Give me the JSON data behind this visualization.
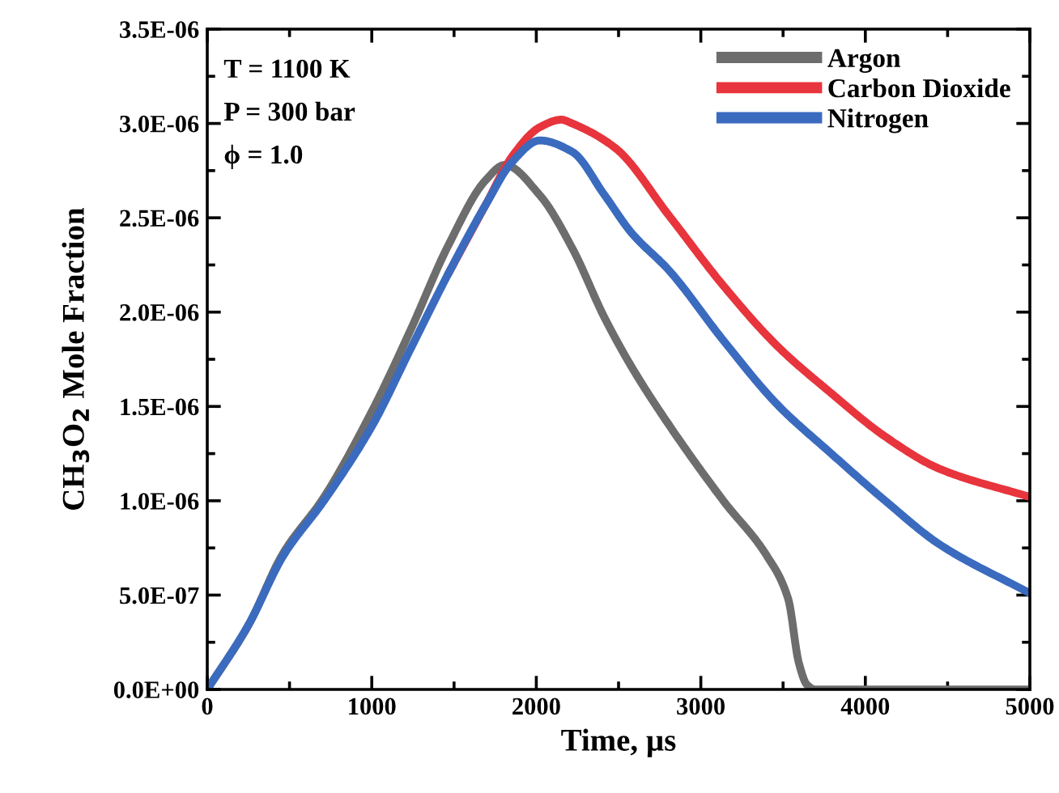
{
  "chart_data": {
    "type": "line",
    "xlabel": "Time, µs",
    "ylabel": "CH$_{3}$O$_{2}$ Mole Fraction",
    "annotations": [
      "T = 1100 K",
      "P = 300 bar",
      "ϕ = 1.0"
    ],
    "xlim": [
      0,
      5000
    ],
    "xticks": [
      0,
      1000,
      2000,
      3000,
      4000,
      5000
    ],
    "ylim": [
      0,
      3.5e-06
    ],
    "yticks": [
      {
        "value": 0,
        "label": "0.0E+00"
      },
      {
        "value": 5e-07,
        "label": "5.0E-07"
      },
      {
        "value": 1e-06,
        "label": "1.0E-06"
      },
      {
        "value": 1.5e-06,
        "label": "1.5E-06"
      },
      {
        "value": 2e-06,
        "label": "2.0E-06"
      },
      {
        "value": 2.5e-06,
        "label": "2.5E-06"
      },
      {
        "value": 3e-06,
        "label": "3.0E-06"
      },
      {
        "value": 3.5e-06,
        "label": "3.5E-06"
      }
    ],
    "grid": false,
    "legend": "top right",
    "marker": "none",
    "line_style": "solid",
    "series": [
      {
        "name": "Argon",
        "color": "#6d6d6d",
        "x": [
          0,
          250,
          460,
          710,
          1004,
          1233,
          1463,
          1693,
          1808,
          2021,
          2218,
          2415,
          2579,
          2808,
          3137,
          3400,
          3531,
          3596,
          3645,
          3694,
          5000
        ],
        "values": [
          0,
          3.4e-07,
          7.2e-07,
          1.02e-06,
          1.48e-06,
          1.9e-06,
          2.35e-06,
          2.7e-06,
          2.78e-06,
          2.62e-06,
          2.34e-06,
          1.97e-06,
          1.71e-06,
          1.4e-06,
          1e-06,
          7.1e-07,
          4.8e-07,
          1.4e-07,
          2.5e-08,
          0,
          0
        ]
      },
      {
        "name": "Carbon Dioxide",
        "color": "#e8343c",
        "x": [
          1463,
          1693,
          1857,
          2021,
          2152,
          2218,
          2480,
          2808,
          3137,
          3465,
          3793,
          4121,
          4449,
          5000
        ],
        "values": [
          2.2e-06,
          2.57e-06,
          2.83e-06,
          2.98e-06,
          3.02e-06,
          3e-06,
          2.87e-06,
          2.51e-06,
          2.14e-06,
          1.82e-06,
          1.57e-06,
          1.34e-06,
          1.17e-06,
          1.02e-06
        ]
      },
      {
        "name": "Nitrogen",
        "color": "#3a6bbf",
        "x": [
          0,
          249,
          463,
          709,
          1004,
          1233,
          1463,
          1693,
          1857,
          2021,
          2218,
          2415,
          2579,
          2808,
          3137,
          3465,
          3793,
          4121,
          4449,
          5000
        ],
        "values": [
          0,
          3.4e-07,
          7.1e-07,
          1e-06,
          1.4e-06,
          1.8e-06,
          2.2e-06,
          2.57e-06,
          2.8e-06,
          2.91e-06,
          2.85e-06,
          2.62e-06,
          2.42e-06,
          2.22e-06,
          1.85e-06,
          1.51e-06,
          1.25e-06,
          1e-06,
          7.7e-07,
          5.1e-07
        ]
      }
    ]
  }
}
